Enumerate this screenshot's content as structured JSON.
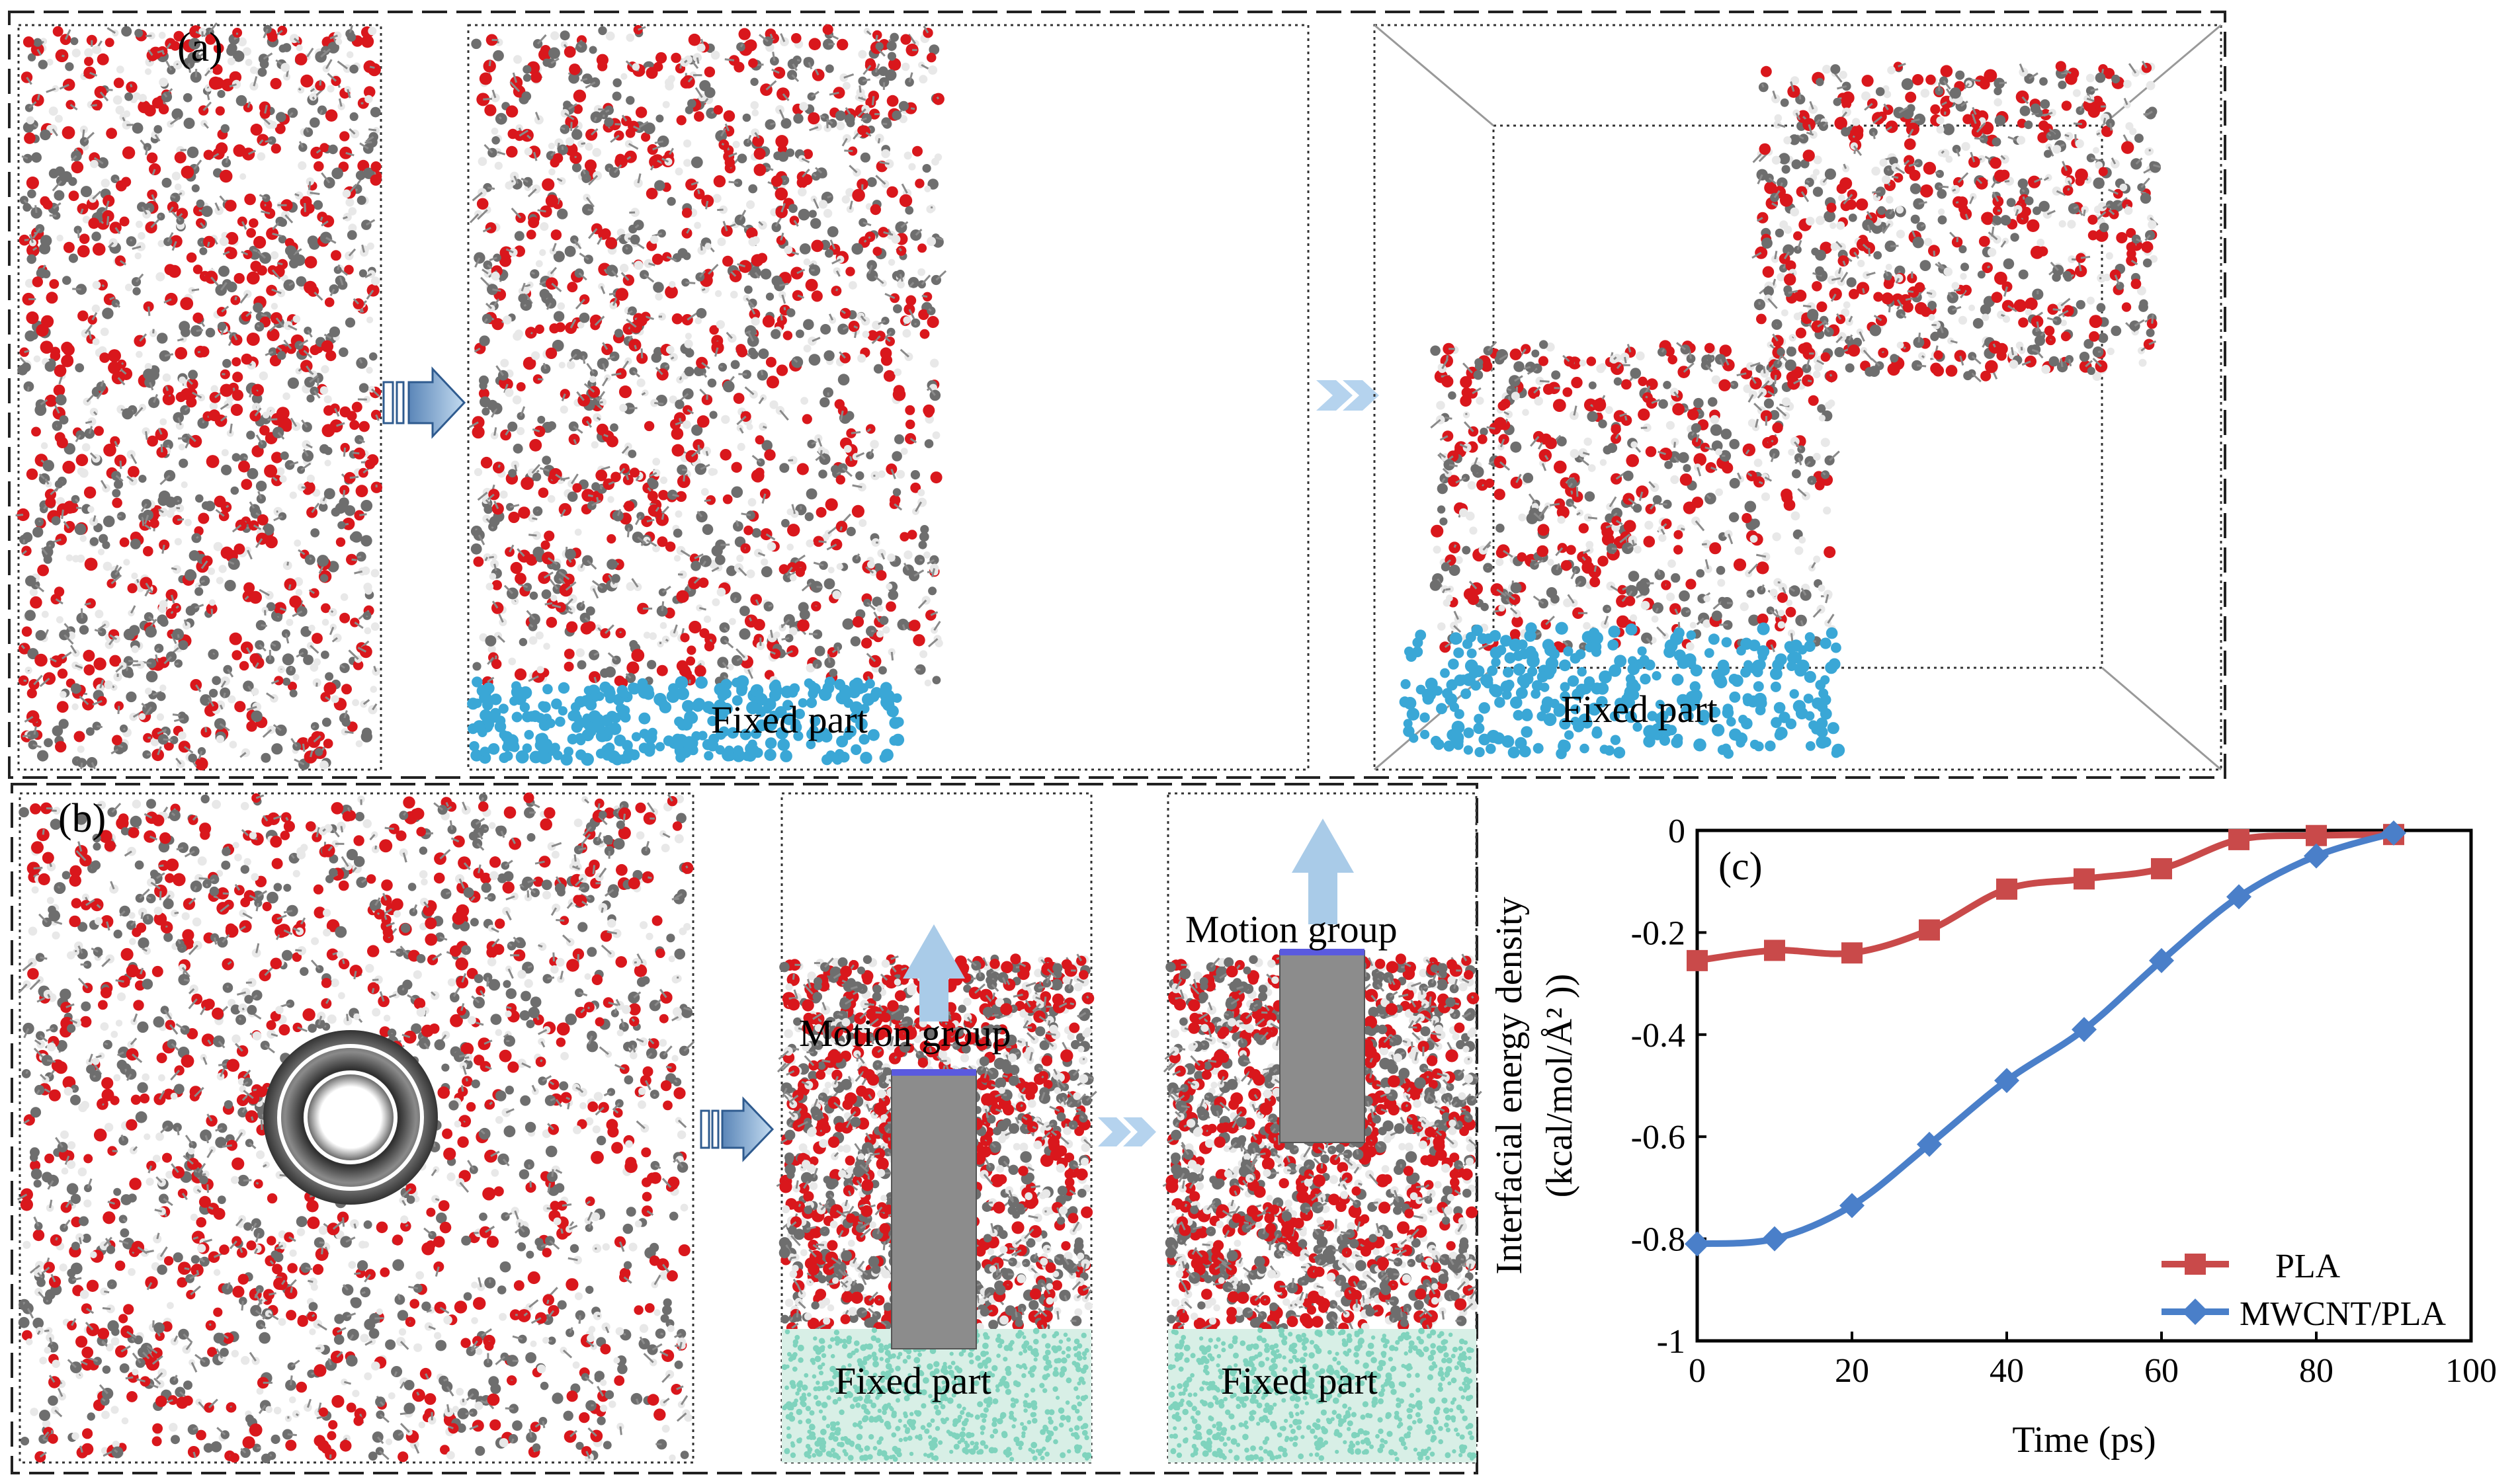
{
  "panels": {
    "a": {
      "label": "(a)",
      "fixed_label_1": "Fixed part",
      "fixed_label_2": "Fixed part"
    },
    "b": {
      "label": "(b)",
      "motion_label_1": "Motion group",
      "motion_label_2": "Motion group",
      "fixed_label_1": "Fixed part",
      "fixed_label_2": "Fixed part"
    },
    "c": {
      "label": "(c)"
    }
  },
  "colors": {
    "oxygen": "#d9171c",
    "carbon": "#6e6e6e",
    "hydrogen": "#e8e8e8",
    "fixed_blue": "#3aa7d6",
    "fixed_teal": "#7fd3bd",
    "arrow_blue": "#a9cbe8",
    "pla_series": "#c94a4a",
    "mwcnt_series": "#4a7fc9"
  },
  "chart_data": {
    "type": "line",
    "title": "",
    "xlabel": "Time (ps)",
    "ylabel_line1": "Interfacial energy density",
    "ylabel_line2": "(kcal/mol/Å² ))",
    "xlim": [
      0,
      100
    ],
    "ylim": [
      -1,
      0
    ],
    "xticks": [
      0,
      20,
      40,
      60,
      80,
      100
    ],
    "yticks": [
      0,
      -0.2,
      -0.4,
      -0.6,
      -0.8,
      -1
    ],
    "xtick_labels": [
      "0",
      "20",
      "40",
      "60",
      "80",
      "100"
    ],
    "ytick_labels": [
      "0",
      "-0.2",
      "-0.4",
      "-0.6",
      "-0.8",
      "-1"
    ],
    "legend_position": "bottom-right",
    "series": [
      {
        "name": "PLA",
        "marker": "square",
        "x": [
          0,
          10,
          20,
          30,
          40,
          50,
          60,
          70,
          80,
          90
        ],
        "values": [
          -0.255,
          -0.235,
          -0.24,
          -0.195,
          -0.115,
          -0.095,
          -0.075,
          -0.018,
          -0.01,
          -0.008
        ]
      },
      {
        "name": "MWCNT/PLA",
        "marker": "diamond",
        "x": [
          0,
          10,
          20,
          30,
          40,
          50,
          60,
          70,
          80,
          90
        ],
        "values": [
          -0.81,
          -0.8,
          -0.735,
          -0.615,
          -0.49,
          -0.39,
          -0.255,
          -0.13,
          -0.05,
          -0.005
        ]
      }
    ]
  }
}
